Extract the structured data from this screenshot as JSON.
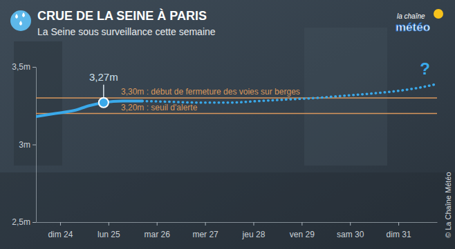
{
  "chart_data": {
    "type": "line",
    "title": "CRUE DE LA SEINE À PARIS",
    "subtitle": "La Seine sous surveillance cette semaine",
    "logo": [
      "la chaîne",
      "météo"
    ],
    "credit": "© La Chaîne Météo",
    "xlim": [
      24,
      32.3
    ],
    "xticks": [
      {
        "value": 24.5,
        "label": "dim 24"
      },
      {
        "value": 25.5,
        "label": "lun 25"
      },
      {
        "value": 26.5,
        "label": "mar 26"
      },
      {
        "value": 27.5,
        "label": "mer 27"
      },
      {
        "value": 28.5,
        "label": "jeu 28"
      },
      {
        "value": 29.5,
        "label": "ven 29"
      },
      {
        "value": 30.5,
        "label": "sam 30"
      },
      {
        "value": 31.5,
        "label": "dim 31"
      }
    ],
    "ylim": [
      2.5,
      3.5
    ],
    "yticks": [
      {
        "value": 2.5,
        "label": "2,5m"
      },
      {
        "value": 3,
        "label": "3m"
      },
      {
        "value": 3.5,
        "label": "3,5m"
      }
    ],
    "grid": false,
    "series": [
      {
        "color": "#3aa9ea",
        "line_style": "solid",
        "x": [
          24,
          24.4,
          24.8,
          25.1,
          25.4,
          25.8,
          26.2
        ],
        "values": [
          3.18,
          3.2,
          3.22,
          3.25,
          3.27,
          3.28,
          3.28
        ]
      },
      {
        "color": "#3aa9ea",
        "line_style": "dotted",
        "x": [
          26.2,
          26.8,
          27.4,
          28.0,
          28.6,
          29.2,
          29.8,
          30.4,
          31.0,
          31.6,
          32.0,
          32.3
        ],
        "values": [
          3.28,
          3.275,
          3.27,
          3.27,
          3.28,
          3.29,
          3.3,
          3.315,
          3.33,
          3.35,
          3.37,
          3.39
        ]
      }
    ],
    "annotations": [
      {
        "value": 3.3,
        "label": "3,30m : début de fermeture des voies sur berges",
        "color": "#d9975c"
      },
      {
        "value": 3.2,
        "label": "3,20m : seuil d'alerte",
        "color": "#d9975c"
      },
      {
        "x": 25.4,
        "value": 3.27,
        "label": "3,27m"
      },
      {
        "x": 32.05,
        "value": 3.45,
        "label": "?"
      }
    ]
  }
}
